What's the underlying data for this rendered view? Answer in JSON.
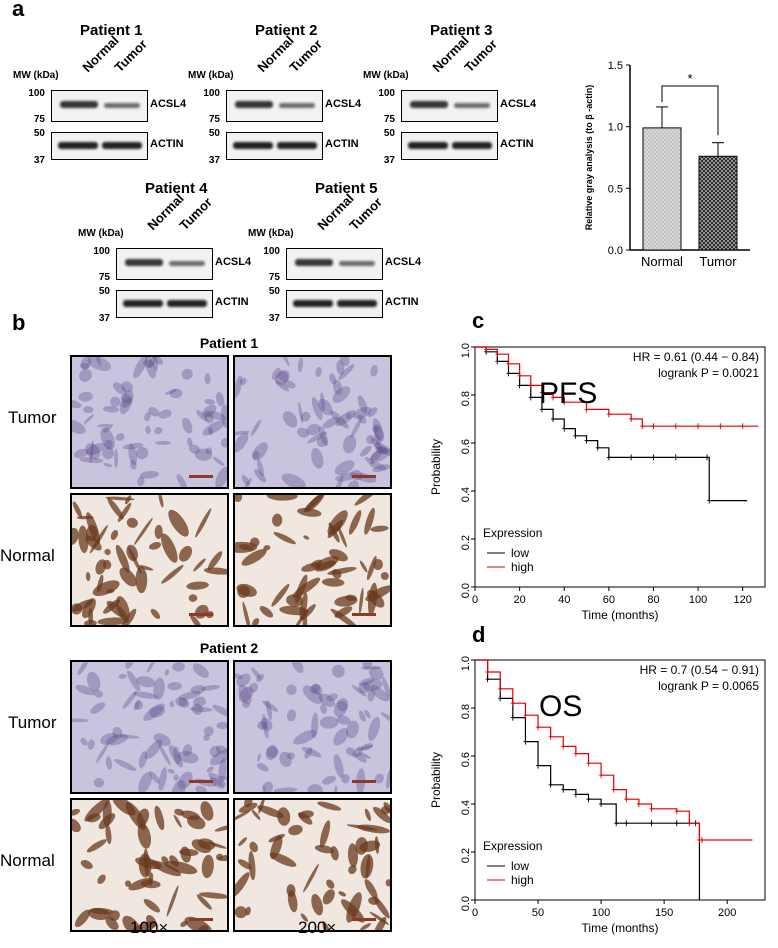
{
  "panel_a": {
    "letter": "a",
    "mw_label": "MW (kDa)",
    "lanes": [
      "Normal",
      "Tumor"
    ],
    "proteins": [
      "ACSL4",
      "ACTIN"
    ],
    "blots": [
      {
        "title": "Patient 1",
        "mw": [
          "100",
          "75",
          "50",
          "37"
        ]
      },
      {
        "title": "Patient 2",
        "mw": [
          "100",
          "75",
          "50",
          "37"
        ]
      },
      {
        "title": "Patient 3",
        "mw": [
          "100",
          "75",
          "50",
          "37"
        ]
      },
      {
        "title": "Patient 4",
        "mw": [
          "100",
          "75",
          "50",
          "37"
        ]
      },
      {
        "title": "Patient 5",
        "mw": [
          "100",
          "75",
          "50",
          "37"
        ]
      }
    ]
  },
  "panel_b": {
    "letter": "b",
    "groups": [
      {
        "title": "Patient 1",
        "rows": [
          "Tumor",
          "Normal"
        ]
      },
      {
        "title": "Patient 2",
        "rows": [
          "Tumor",
          "Normal"
        ]
      }
    ],
    "magnifications": [
      "100×",
      "200×"
    ],
    "colors": {
      "tumor_bg": "#c9c4de",
      "normal_bg": "#f0e8e0",
      "stain_brown": "#6b3a1e",
      "nuclei": "#5a4a8a"
    }
  },
  "chart_data": [
    {
      "type": "bar",
      "categories": [
        "Normal",
        "Tumor"
      ],
      "values": [
        0.99,
        0.76
      ],
      "errors": [
        0.17,
        0.11
      ],
      "ylabel": "Relative gray analysis (to β -actin)",
      "ylim": [
        0,
        1.5
      ],
      "yticks": [
        "0.0",
        "0.5",
        "1.0",
        "1.5"
      ],
      "significance": "*",
      "patterns": [
        "dotted-gray",
        "crosshatch-dark"
      ]
    },
    {
      "panel": "c",
      "type": "line",
      "overlay_label": "PFS",
      "xlabel": "Time (months)",
      "ylabel": "Probability",
      "xlim": [
        0,
        130
      ],
      "ylim": [
        0,
        1
      ],
      "xticks": [
        "0",
        "20",
        "40",
        "60",
        "80",
        "100",
        "120"
      ],
      "yticks": [
        "0.0",
        "0.2",
        "0.4",
        "0.6",
        "0.8",
        "1.0"
      ],
      "hr_text": "HR = 0.61 (0.44 − 0.84)",
      "p_text": "logrank P = 0.0021",
      "legend_title": "Expression",
      "series": [
        {
          "name": "low",
          "color": "#000000",
          "x": [
            0,
            5,
            10,
            15,
            20,
            25,
            30,
            35,
            40,
            45,
            50,
            55,
            60,
            70,
            80,
            90,
            104,
            105,
            122
          ],
          "y": [
            1.0,
            0.98,
            0.94,
            0.89,
            0.84,
            0.79,
            0.74,
            0.7,
            0.66,
            0.63,
            0.61,
            0.58,
            0.54,
            0.54,
            0.54,
            0.54,
            0.54,
            0.36,
            0.36
          ]
        },
        {
          "name": "high",
          "color": "#e00000",
          "x": [
            0,
            5,
            10,
            15,
            20,
            25,
            30,
            35,
            40,
            50,
            60,
            70,
            75,
            80,
            90,
            100,
            110,
            120,
            127
          ],
          "y": [
            1.0,
            0.99,
            0.97,
            0.93,
            0.88,
            0.84,
            0.81,
            0.79,
            0.77,
            0.74,
            0.72,
            0.7,
            0.67,
            0.67,
            0.67,
            0.67,
            0.67,
            0.67,
            0.67
          ]
        }
      ]
    },
    {
      "panel": "d",
      "type": "line",
      "overlay_label": "OS",
      "xlabel": "Time (months)",
      "ylabel": "Probability",
      "xlim": [
        0,
        230
      ],
      "ylim": [
        0,
        1
      ],
      "xticks": [
        "0",
        "50",
        "100",
        "150",
        "200"
      ],
      "yticks": [
        "0.0",
        "0.2",
        "0.4",
        "0.6",
        "0.8",
        "1.0"
      ],
      "hr_text": "HR = 0.7 (0.54 − 0.91)",
      "p_text": "logrank P = 0.0065",
      "legend_title": "Expression",
      "series": [
        {
          "name": "low",
          "color": "#000000",
          "x": [
            0,
            10,
            20,
            30,
            40,
            50,
            60,
            70,
            80,
            90,
            100,
            112,
            120,
            140,
            160,
            175,
            178
          ],
          "y": [
            1.0,
            0.92,
            0.84,
            0.76,
            0.66,
            0.56,
            0.48,
            0.46,
            0.44,
            0.42,
            0.4,
            0.32,
            0.32,
            0.32,
            0.32,
            0.32,
            0.0
          ]
        },
        {
          "name": "high",
          "color": "#e00000",
          "x": [
            0,
            10,
            20,
            30,
            40,
            50,
            60,
            70,
            80,
            90,
            100,
            110,
            120,
            130,
            140,
            160,
            170,
            178,
            180,
            220
          ],
          "y": [
            1.0,
            0.95,
            0.88,
            0.82,
            0.77,
            0.72,
            0.68,
            0.64,
            0.61,
            0.57,
            0.52,
            0.46,
            0.42,
            0.4,
            0.38,
            0.37,
            0.32,
            0.25,
            0.25,
            0.25
          ]
        }
      ]
    }
  ]
}
